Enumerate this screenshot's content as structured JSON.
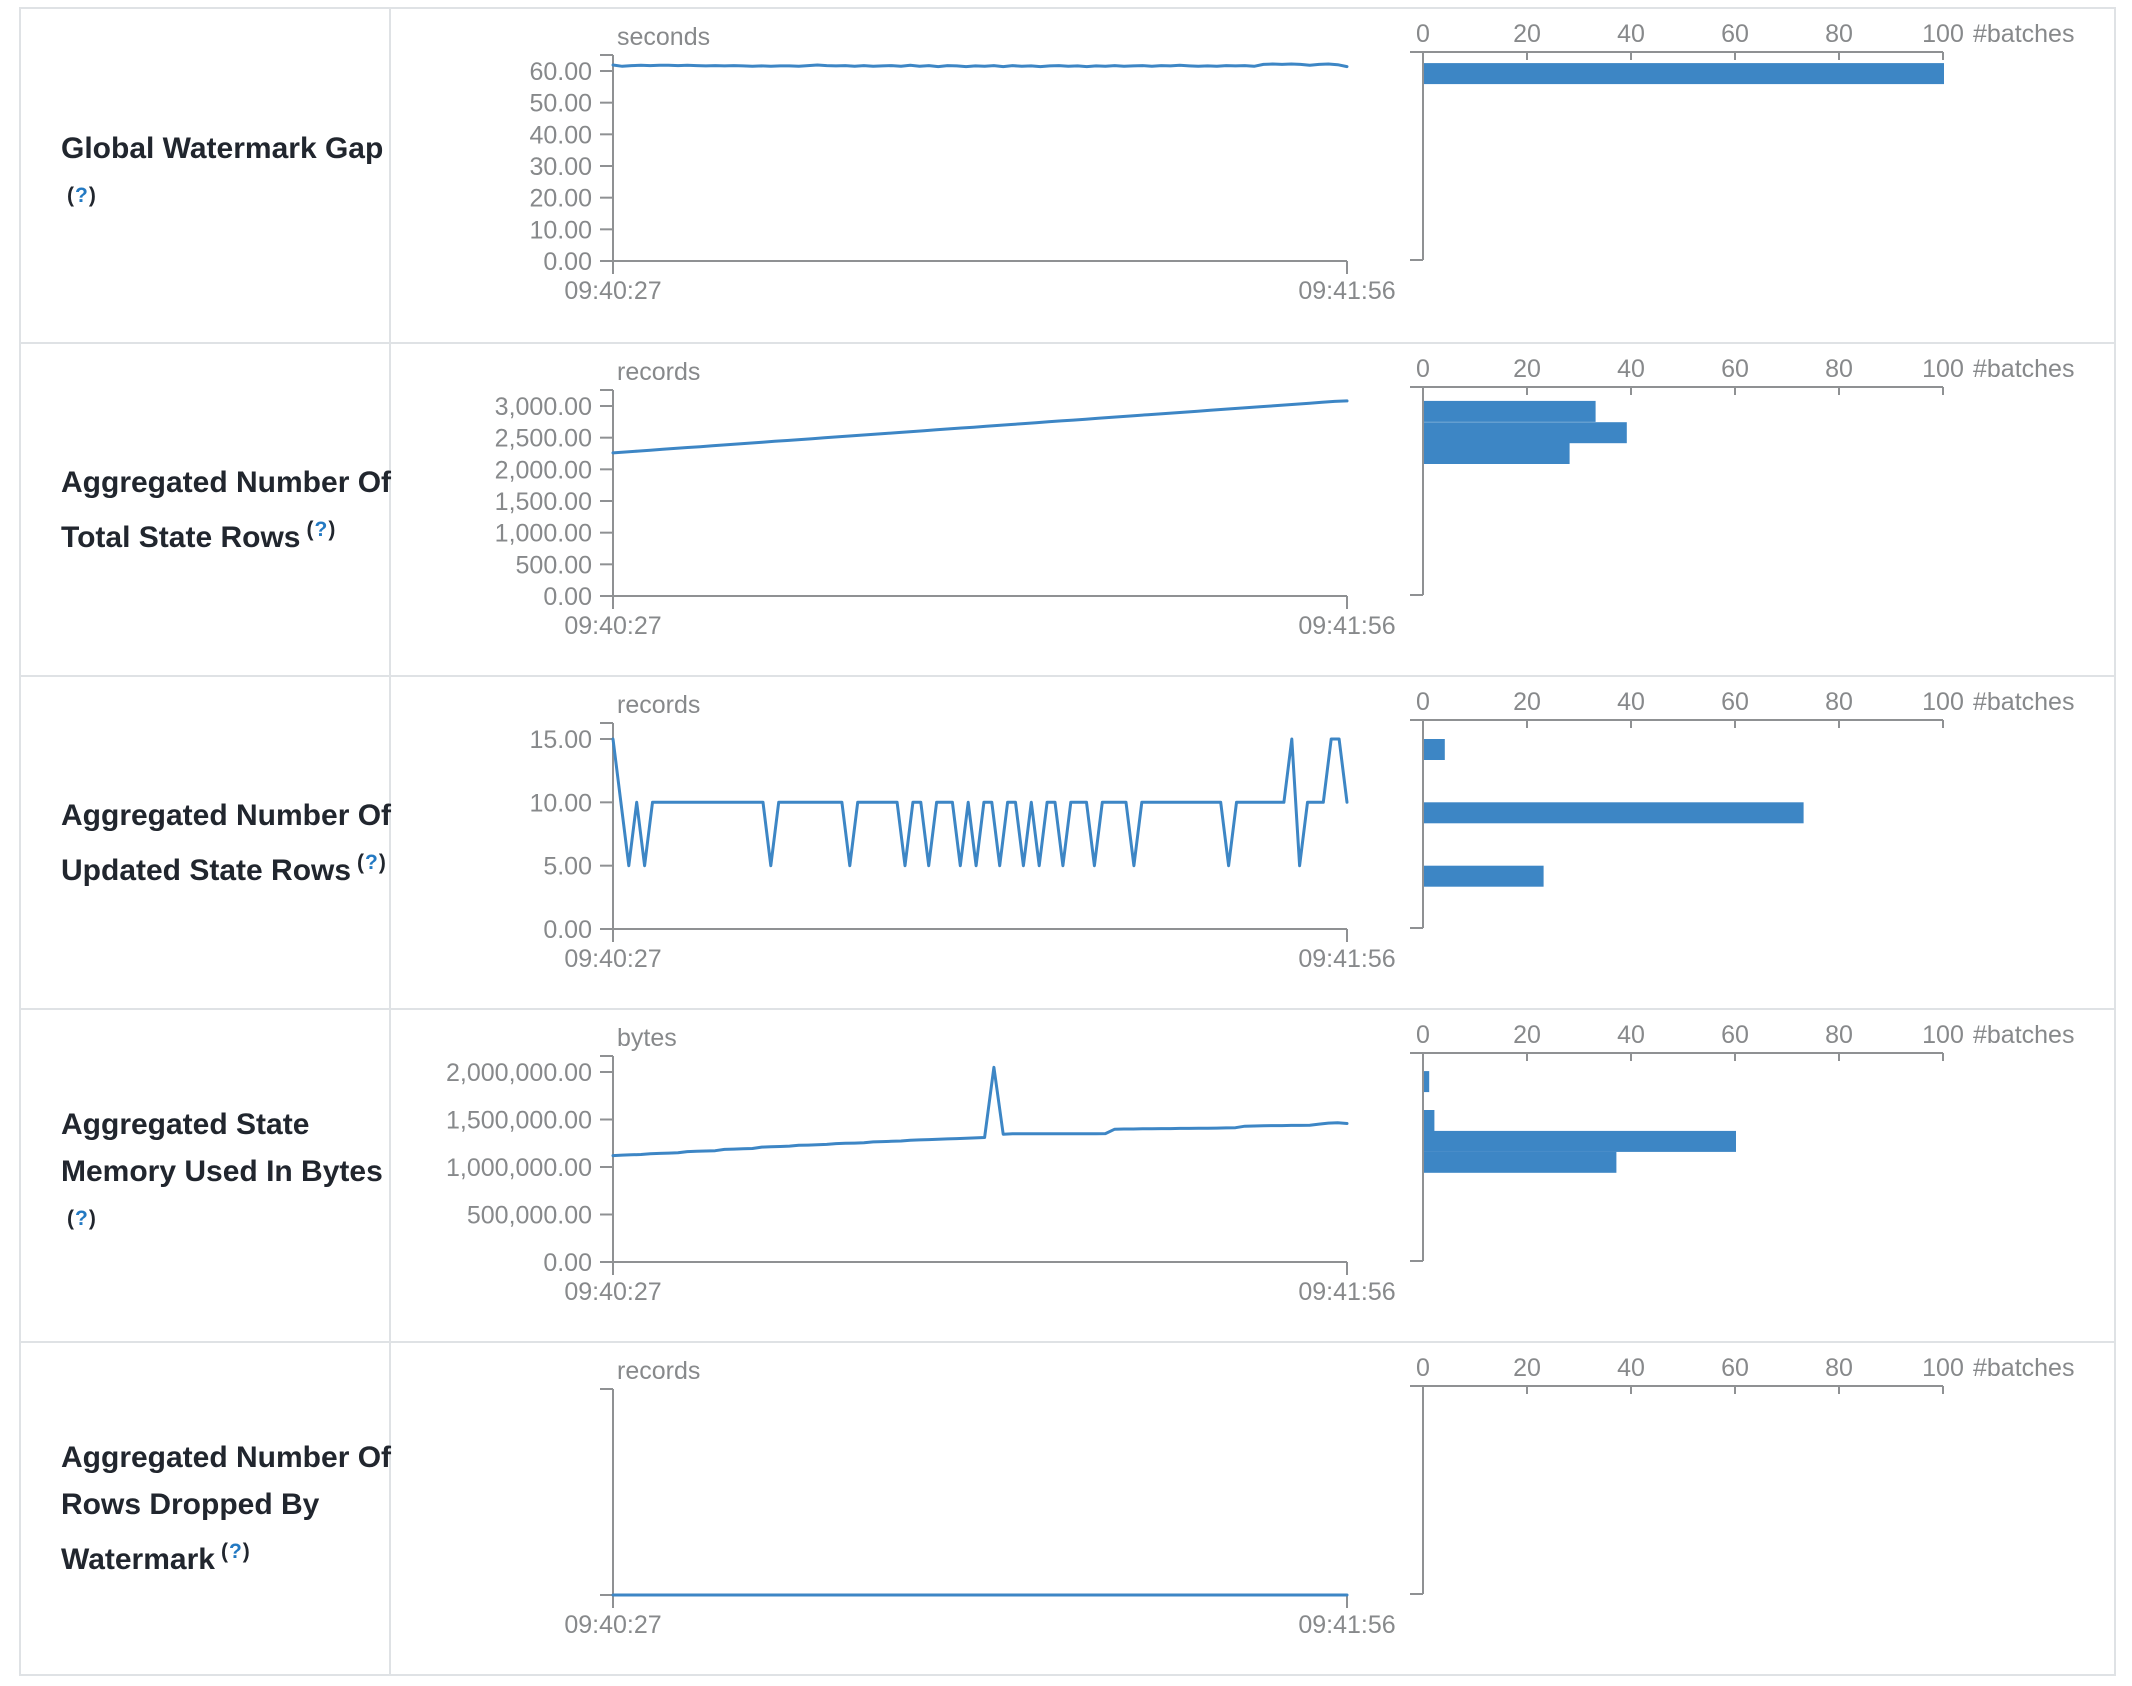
{
  "theme": {
    "accent_blue": "#3d86c5",
    "axis_gray": "#8f9193",
    "axis_text_gray": "#87898b",
    "label_dark": "#21262e",
    "help_link_blue": "#2379c2",
    "table_border": "#dfe2e5"
  },
  "table": {
    "rows": [
      {
        "id": "global-watermark-gap",
        "label_lines": [
          "Global Watermark Gap"
        ],
        "help": {
          "prefix": "(",
          "q": "?",
          "suffix": ")"
        },
        "help_inline": false,
        "timeline": {
          "type": "line",
          "unit": "seconds",
          "x_start_label": "09:40:27",
          "x_end_label": "09:41:56",
          "y_max_tick": 60,
          "y_ticks": [
            {
              "v": 60,
              "t": "60.00"
            },
            {
              "v": 50,
              "t": "50.00"
            },
            {
              "v": 40,
              "t": "40.00"
            },
            {
              "v": 30,
              "t": "30.00"
            },
            {
              "v": 20,
              "t": "20.00"
            },
            {
              "v": 10,
              "t": "10.00"
            },
            {
              "v": 0,
              "t": "0.00"
            }
          ],
          "values": [
            61.9,
            61.5,
            61.7,
            61.8,
            61.7,
            61.8,
            61.8,
            61.7,
            61.8,
            61.7,
            61.6,
            61.7,
            61.6,
            61.7,
            61.6,
            61.5,
            61.6,
            61.5,
            61.6,
            61.6,
            61.5,
            61.7,
            61.9,
            61.7,
            61.6,
            61.7,
            61.5,
            61.7,
            61.5,
            61.6,
            61.7,
            61.5,
            61.8,
            61.5,
            61.7,
            61.4,
            61.7,
            61.6,
            61.4,
            61.6,
            61.5,
            61.7,
            61.4,
            61.7,
            61.5,
            61.6,
            61.4,
            61.6,
            61.7,
            61.5,
            61.6,
            61.4,
            61.6,
            61.5,
            61.7,
            61.5,
            61.6,
            61.7,
            61.5,
            61.7,
            61.6,
            61.8,
            61.6,
            61.5,
            61.6,
            61.5,
            61.7,
            61.6,
            61.7,
            61.5,
            62.1,
            62.2,
            62.1,
            62.2,
            62.1,
            61.8,
            62.1,
            62.2,
            62.0,
            61.4
          ]
        },
        "histogram": {
          "type": "bar",
          "axis_label": "#batches",
          "x_ticks": [
            0,
            20,
            40,
            60,
            80,
            100
          ],
          "x_max": 100,
          "bins": [
            {
              "value": 62.5,
              "count": 100
            }
          ]
        }
      },
      {
        "id": "aggregated-total-state-rows",
        "label_lines": [
          "Aggregated Number Of",
          "Total State Rows"
        ],
        "help": {
          "prefix": "(",
          "q": "?",
          "suffix": ")"
        },
        "help_inline": true,
        "timeline": {
          "type": "line",
          "unit": "records",
          "x_start_label": "09:40:27",
          "x_end_label": "09:41:56",
          "y_max_tick": 3000,
          "y_ticks": [
            {
              "v": 3000,
              "t": "3,000.00"
            },
            {
              "v": 2500,
              "t": "2,500.00"
            },
            {
              "v": 2000,
              "t": "2,000.00"
            },
            {
              "v": 1500,
              "t": "1,500.00"
            },
            {
              "v": 1000,
              "t": "1,000.00"
            },
            {
              "v": 500,
              "t": "500.00"
            },
            {
              "v": 0,
              "t": "0.00"
            }
          ],
          "values": [
            2260,
            2274,
            2288,
            2302,
            2316,
            2330,
            2344,
            2358,
            2372,
            2386,
            2400,
            2414,
            2428,
            2442,
            2456,
            2470,
            2484,
            2498,
            2512,
            2526,
            2540,
            2554,
            2568,
            2582,
            2596,
            2610,
            2624,
            2638,
            2652,
            2666,
            2680,
            2694,
            2708,
            2722,
            2736,
            2750,
            2764,
            2778,
            2792,
            2806,
            2820,
            2834,
            2848,
            2862,
            2876,
            2890,
            2904,
            2918,
            2932,
            2946,
            2960,
            2974,
            2988,
            3002,
            3016,
            3030,
            3044,
            3058,
            3072,
            3080
          ]
        },
        "histogram": {
          "type": "bar",
          "axis_label": "#batches",
          "x_ticks": [
            0,
            20,
            40,
            60,
            80,
            100
          ],
          "x_max": 100,
          "bins": [
            {
              "value": 3080,
              "count": 33
            },
            {
              "value": 2745,
              "count": 39
            },
            {
              "value": 2415,
              "count": 28
            }
          ]
        }
      },
      {
        "id": "aggregated-updated-state-rows",
        "label_lines": [
          "Aggregated Number Of",
          "Updated State Rows"
        ],
        "help": {
          "prefix": "(",
          "q": "?",
          "suffix": ")"
        },
        "help_inline": true,
        "timeline": {
          "type": "line",
          "unit": "records",
          "x_start_label": "09:40:27",
          "x_end_label": "09:41:56",
          "y_max_tick": 15,
          "y_ticks": [
            {
              "v": 15,
              "t": "15.00"
            },
            {
              "v": 10,
              "t": "10.00"
            },
            {
              "v": 5,
              "t": "5.00"
            },
            {
              "v": 0,
              "t": "0.00"
            }
          ],
          "values": [
            15,
            10,
            5,
            10,
            5,
            10,
            10,
            10,
            10,
            10,
            10,
            10,
            10,
            10,
            10,
            10,
            10,
            10,
            10,
            10,
            5,
            10,
            10,
            10,
            10,
            10,
            10,
            10,
            10,
            10,
            5,
            10,
            10,
            10,
            10,
            10,
            10,
            5,
            10,
            10,
            5,
            10,
            10,
            10,
            5,
            10,
            5,
            10,
            10,
            5,
            10,
            10,
            5,
            10,
            5,
            10,
            10,
            5,
            10,
            10,
            10,
            5,
            10,
            10,
            10,
            10,
            5,
            10,
            10,
            10,
            10,
            10,
            10,
            10,
            10,
            10,
            10,
            10,
            5,
            10,
            10,
            10,
            10,
            10,
            10,
            10,
            15,
            5,
            10,
            10,
            10,
            15,
            15,
            10
          ]
        },
        "histogram": {
          "type": "bar",
          "axis_label": "#batches",
          "x_ticks": [
            0,
            20,
            40,
            60,
            80,
            100
          ],
          "x_max": 100,
          "bins": [
            {
              "value": 15,
              "count": 4
            },
            {
              "value": 10,
              "count": 73
            },
            {
              "value": 5,
              "count": 23
            }
          ]
        }
      },
      {
        "id": "aggregated-state-memory-used",
        "label_lines": [
          "Aggregated State",
          "Memory Used In Bytes"
        ],
        "help": {
          "prefix": "(",
          "q": "?",
          "suffix": ")"
        },
        "help_inline": false,
        "timeline": {
          "type": "line",
          "unit": "bytes",
          "x_start_label": "09:40:27",
          "x_end_label": "09:41:56",
          "y_max_tick": 2000000,
          "y_ticks": [
            {
              "v": 2000000,
              "t": "2,000,000.00"
            },
            {
              "v": 1500000,
              "t": "1,500,000.00"
            },
            {
              "v": 1000000,
              "t": "1,000,000.00"
            },
            {
              "v": 500000,
              "t": "500,000.00"
            },
            {
              "v": 0,
              "t": "0.00"
            }
          ],
          "values": [
            1120000,
            1125000,
            1128000,
            1132000,
            1140000,
            1143000,
            1146000,
            1150000,
            1162000,
            1165000,
            1168000,
            1172000,
            1185000,
            1188000,
            1192000,
            1195000,
            1210000,
            1213000,
            1216000,
            1220000,
            1228000,
            1231000,
            1234000,
            1238000,
            1246000,
            1249000,
            1252000,
            1256000,
            1264000,
            1267000,
            1270000,
            1274000,
            1282000,
            1285000,
            1288000,
            1292000,
            1296000,
            1299000,
            1302000,
            1306000,
            1310000,
            2050000,
            1345000,
            1350000,
            1350000,
            1350000,
            1350000,
            1350000,
            1350000,
            1350000,
            1350000,
            1350000,
            1350000,
            1352000,
            1398000,
            1400000,
            1400000,
            1402000,
            1402000,
            1404000,
            1404000,
            1406000,
            1406000,
            1408000,
            1408000,
            1410000,
            1412000,
            1414000,
            1430000,
            1432000,
            1434000,
            1436000,
            1436000,
            1438000,
            1438000,
            1440000,
            1452000,
            1462000,
            1465000,
            1458000
          ]
        },
        "histogram": {
          "type": "bar",
          "axis_label": "#batches",
          "x_ticks": [
            0,
            20,
            40,
            60,
            80,
            100
          ],
          "x_max": 100,
          "bins": [
            {
              "value": 2010000,
              "count": 1
            },
            {
              "value": 1600000,
              "count": 2
            },
            {
              "value": 1380000,
              "count": 60
            },
            {
              "value": 1160000,
              "count": 37
            }
          ]
        }
      },
      {
        "id": "aggregated-rows-dropped-by-watermark",
        "label_lines": [
          "Aggregated Number Of",
          "Rows Dropped By",
          "Watermark"
        ],
        "help": {
          "prefix": "(",
          "q": "?",
          "suffix": ")"
        },
        "help_inline": true,
        "timeline": {
          "type": "line",
          "unit": "records",
          "x_start_label": "09:40:27",
          "x_end_label": "09:41:56",
          "y_max_tick": 1,
          "y_ticks": [],
          "values": [
            0,
            0,
            0,
            0,
            0,
            0,
            0,
            0,
            0,
            0,
            0,
            0,
            0,
            0,
            0,
            0,
            0,
            0,
            0,
            0,
            0,
            0,
            0,
            0,
            0,
            0,
            0,
            0,
            0,
            0,
            0,
            0,
            0,
            0,
            0,
            0,
            0,
            0,
            0,
            0,
            0,
            0,
            0,
            0,
            0,
            0,
            0,
            0,
            0,
            0,
            0,
            0,
            0,
            0,
            0,
            0,
            0,
            0,
            0,
            0
          ]
        },
        "histogram": {
          "type": "bar",
          "axis_label": "#batches",
          "x_ticks": [
            0,
            20,
            40,
            60,
            80,
            100
          ],
          "x_max": 100,
          "bins": []
        }
      }
    ]
  }
}
